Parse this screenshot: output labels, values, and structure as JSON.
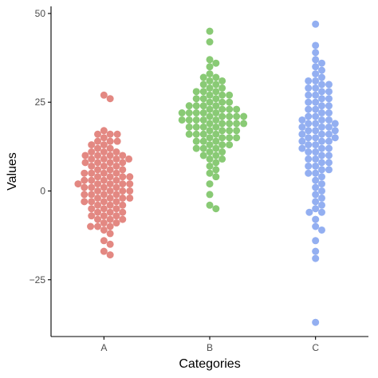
{
  "chart_data": {
    "type": "scatter",
    "title": "",
    "xlabel": "Categories",
    "ylabel": "Values",
    "categories": [
      "A",
      "B",
      "C"
    ],
    "ylim": [
      -41,
      52
    ],
    "yticks": [
      -25,
      0,
      25,
      50
    ],
    "ytick_labels": [
      "−25",
      "0",
      "25",
      "50"
    ],
    "grid": false,
    "legend": "none",
    "series": [
      {
        "category": "A",
        "color": "#e07b74",
        "values": [
          27,
          26,
          17,
          16,
          16,
          16,
          15,
          14,
          14,
          14,
          13,
          13,
          12,
          12,
          11,
          11,
          11,
          10,
          10,
          10,
          10,
          9,
          9,
          9,
          9,
          8,
          8,
          8,
          8,
          7,
          7,
          7,
          6,
          6,
          6,
          5,
          5,
          5,
          5,
          4,
          4,
          4,
          4,
          3,
          3,
          3,
          3,
          2,
          2,
          2,
          2,
          2,
          1,
          1,
          1,
          1,
          0,
          0,
          0,
          0,
          -1,
          -1,
          -1,
          -1,
          -2,
          -2,
          -2,
          -2,
          -3,
          -3,
          -3,
          -3,
          -4,
          -4,
          -4,
          -5,
          -5,
          -5,
          -6,
          -6,
          -6,
          -7,
          -7,
          -7,
          -8,
          -8,
          -8,
          -9,
          -9,
          -10,
          -10,
          -10,
          -11,
          -12,
          -14,
          -15,
          -17,
          -18
        ]
      },
      {
        "category": "B",
        "color": "#7cc466",
        "values": [
          45,
          42,
          37,
          36,
          35,
          33,
          32,
          32,
          31,
          31,
          30,
          30,
          29,
          29,
          28,
          28,
          28,
          27,
          27,
          27,
          26,
          26,
          26,
          25,
          25,
          25,
          24,
          24,
          24,
          24,
          23,
          23,
          23,
          23,
          22,
          22,
          22,
          22,
          22,
          21,
          21,
          21,
          21,
          21,
          20,
          20,
          20,
          20,
          20,
          19,
          19,
          19,
          19,
          19,
          18,
          18,
          18,
          18,
          17,
          17,
          17,
          17,
          16,
          16,
          16,
          16,
          15,
          15,
          15,
          15,
          14,
          14,
          14,
          13,
          13,
          13,
          12,
          12,
          12,
          11,
          11,
          10,
          10,
          9,
          9,
          8,
          7,
          6,
          5,
          4,
          2,
          -1,
          -4,
          -5
        ]
      },
      {
        "category": "C",
        "color": "#87a6f0",
        "values": [
          47,
          41,
          39,
          37,
          36,
          35,
          34,
          33,
          32,
          31,
          31,
          30,
          30,
          29,
          29,
          28,
          28,
          27,
          27,
          26,
          26,
          25,
          25,
          24,
          24,
          23,
          23,
          22,
          22,
          21,
          21,
          20,
          20,
          20,
          19,
          19,
          19,
          18,
          18,
          18,
          17,
          17,
          17,
          16,
          16,
          16,
          15,
          15,
          15,
          14,
          14,
          14,
          13,
          13,
          12,
          12,
          12,
          11,
          11,
          10,
          10,
          9,
          9,
          8,
          8,
          7,
          7,
          6,
          6,
          5,
          5,
          4,
          3,
          2,
          1,
          0,
          -1,
          -2,
          -3,
          -4,
          -5,
          -6,
          -6,
          -8,
          -10,
          -11,
          -14,
          -17,
          -19,
          -37
        ]
      }
    ]
  }
}
